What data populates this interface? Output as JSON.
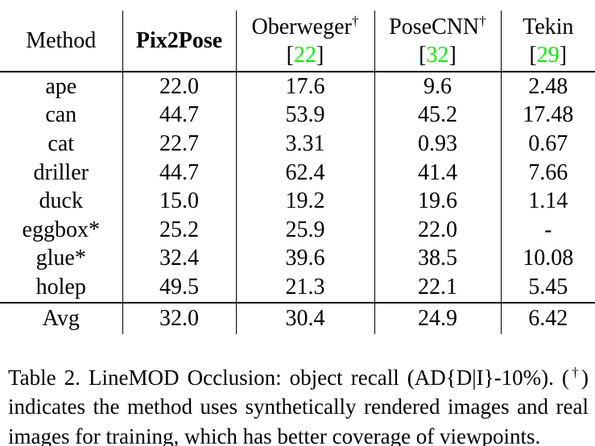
{
  "colors": {
    "text": "#000000",
    "rule": "#000000",
    "citation_green": "#00ee00"
  },
  "table": {
    "header": [
      {
        "name": "Method",
        "bold": false,
        "dagger": false,
        "cite": null
      },
      {
        "name": "Pix2Pose",
        "bold": true,
        "dagger": false,
        "cite": null
      },
      {
        "name": "Oberweger",
        "bold": false,
        "dagger": true,
        "cite": "22"
      },
      {
        "name": "PoseCNN",
        "bold": false,
        "dagger": true,
        "cite": "32"
      },
      {
        "name": "Tekin",
        "bold": false,
        "dagger": false,
        "cite": "29"
      }
    ],
    "rows": [
      {
        "method": "ape",
        "values": [
          "22.0",
          "17.6",
          "9.6",
          "2.48"
        ],
        "bold_value": 0
      },
      {
        "method": "can",
        "values": [
          "44.7",
          "53.9",
          "45.2",
          "17.48"
        ],
        "bold_value": 1
      },
      {
        "method": "cat",
        "values": [
          "22.7",
          "3.31",
          "0.93",
          "0.67"
        ],
        "bold_value": 0
      },
      {
        "method": "driller",
        "values": [
          "44.7",
          "62.4",
          "41.4",
          "7.66"
        ],
        "bold_value": 1
      },
      {
        "method": "duck",
        "values": [
          "15.0",
          "19.2",
          "19.6",
          "1.14"
        ],
        "bold_value": 2
      },
      {
        "method": "eggbox*",
        "values": [
          "25.2",
          "25.9",
          "22.0",
          "-"
        ],
        "bold_value": 1
      },
      {
        "method": "glue*",
        "values": [
          "32.4",
          "39.6",
          "38.5",
          "10.08"
        ],
        "bold_value": 1
      },
      {
        "method": "holep",
        "values": [
          "49.5",
          "21.3",
          "22.1",
          "5.45"
        ],
        "bold_value": 0
      }
    ],
    "summary_row": {
      "method": "Avg",
      "values": [
        "32.0",
        "30.4",
        "24.9",
        "6.42"
      ],
      "bold_value": 0
    }
  },
  "caption": {
    "lines": [
      {
        "pre": "Table 2. LineMOD Occlusion: object recall (AD{D|I}-10%). (",
        "sup": "†",
        "post": ")"
      },
      {
        "pre": "indicates the method uses synthetically rendered images and real",
        "sup": null,
        "post": null
      },
      {
        "pre": "images for training, which has better coverage of viewpoints.",
        "sup": null,
        "post": null
      }
    ]
  }
}
